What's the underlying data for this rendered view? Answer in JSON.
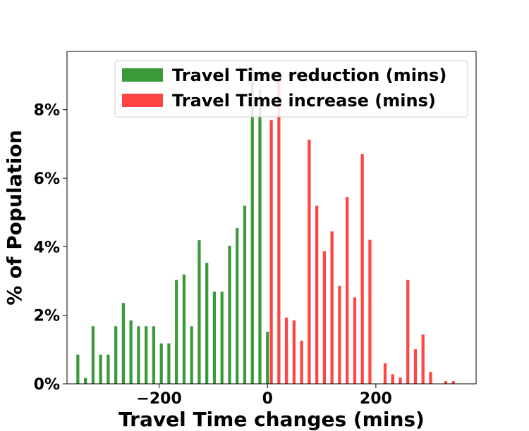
{
  "chart_data": {
    "type": "bar",
    "xlabel": "Travel Time changes (mins)",
    "ylabel": "% of Population",
    "xlim": [
      -370,
      385
    ],
    "ylim": [
      0,
      9.7
    ],
    "x_ticks": [
      -200,
      0,
      200
    ],
    "x_tick_labels": [
      "−200",
      "0",
      "200"
    ],
    "y_ticks": [
      0,
      2,
      4,
      6,
      8
    ],
    "y_tick_labels": [
      "0%",
      "2%",
      "4%",
      "6%",
      "8%"
    ],
    "grid": false,
    "legend_position": "top-right",
    "bar_width": 5.5,
    "series": [
      {
        "name": "Travel Time reduction (mins)",
        "color": "#3a9a3a",
        "points": [
          {
            "x": -350,
            "y": 0.85
          },
          {
            "x": -336,
            "y": 0.17
          },
          {
            "x": -322,
            "y": 1.68
          },
          {
            "x": -308,
            "y": 0.85
          },
          {
            "x": -294,
            "y": 0.85
          },
          {
            "x": -280,
            "y": 1.68
          },
          {
            "x": -266,
            "y": 2.36
          },
          {
            "x": -252,
            "y": 1.85
          },
          {
            "x": -238,
            "y": 1.68
          },
          {
            "x": -224,
            "y": 1.68
          },
          {
            "x": -210,
            "y": 1.68
          },
          {
            "x": -196,
            "y": 1.18
          },
          {
            "x": -182,
            "y": 1.18
          },
          {
            "x": -168,
            "y": 3.03
          },
          {
            "x": -154,
            "y": 3.19
          },
          {
            "x": -140,
            "y": 1.68
          },
          {
            "x": -126,
            "y": 4.19
          },
          {
            "x": -112,
            "y": 3.53
          },
          {
            "x": -98,
            "y": 2.69
          },
          {
            "x": -84,
            "y": 2.69
          },
          {
            "x": -70,
            "y": 4.03
          },
          {
            "x": -56,
            "y": 4.54
          },
          {
            "x": -42,
            "y": 5.2
          },
          {
            "x": -28,
            "y": 9.25
          },
          {
            "x": -14,
            "y": 8.58
          },
          {
            "x": 0,
            "y": 1.52
          }
        ]
      },
      {
        "name": "Travel Time increase (mins)",
        "color": "#ff4444",
        "points": [
          {
            "x": 7,
            "y": 7.7
          },
          {
            "x": 21,
            "y": 8.9
          },
          {
            "x": 35,
            "y": 1.93
          },
          {
            "x": 49,
            "y": 1.85
          },
          {
            "x": 63,
            "y": 1.26
          },
          {
            "x": 77,
            "y": 7.12
          },
          {
            "x": 91,
            "y": 5.2
          },
          {
            "x": 105,
            "y": 3.87
          },
          {
            "x": 119,
            "y": 4.45
          },
          {
            "x": 133,
            "y": 2.86
          },
          {
            "x": 147,
            "y": 5.45
          },
          {
            "x": 161,
            "y": 2.52
          },
          {
            "x": 175,
            "y": 6.7
          },
          {
            "x": 189,
            "y": 4.2
          },
          {
            "x": 217,
            "y": 0.6
          },
          {
            "x": 231,
            "y": 0.28
          },
          {
            "x": 245,
            "y": 0.18
          },
          {
            "x": 259,
            "y": 3.03
          },
          {
            "x": 273,
            "y": 1.01
          },
          {
            "x": 287,
            "y": 1.44
          },
          {
            "x": 301,
            "y": 0.35
          },
          {
            "x": 329,
            "y": 0.08
          },
          {
            "x": 343,
            "y": 0.08
          }
        ]
      }
    ]
  }
}
